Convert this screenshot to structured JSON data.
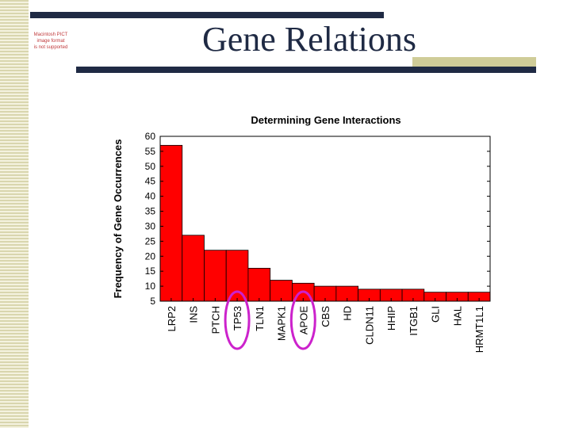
{
  "slide": {
    "title": "Gene Relations",
    "placeholder_lines": [
      "Macintosh PICT",
      "image format",
      "is not supported"
    ]
  },
  "chart_data": {
    "type": "bar",
    "title": "Determining Gene Interactions",
    "xlabel": "",
    "ylabel": "Frequency of Gene Occurrences",
    "categories": [
      "LRP2",
      "INS",
      "PTCH",
      "TP53",
      "TLN1",
      "MAPK1",
      "APOE",
      "CBS",
      "HD",
      "CLDN11",
      "HHIP",
      "ITGB1",
      "GLI",
      "HAL",
      "HRMT1L1"
    ],
    "values": [
      57,
      27,
      22,
      22,
      16,
      12,
      11,
      10,
      10,
      9,
      9,
      9,
      8,
      8,
      8
    ],
    "yticks": [
      5,
      10,
      15,
      20,
      25,
      30,
      35,
      40,
      45,
      50,
      55,
      60
    ],
    "ylim": [
      5,
      60
    ],
    "grid": false,
    "bar_color": "#ff0000",
    "highlighted_categories": [
      "TP53",
      "APOE"
    ],
    "highlight_color": "#cc22cc"
  }
}
